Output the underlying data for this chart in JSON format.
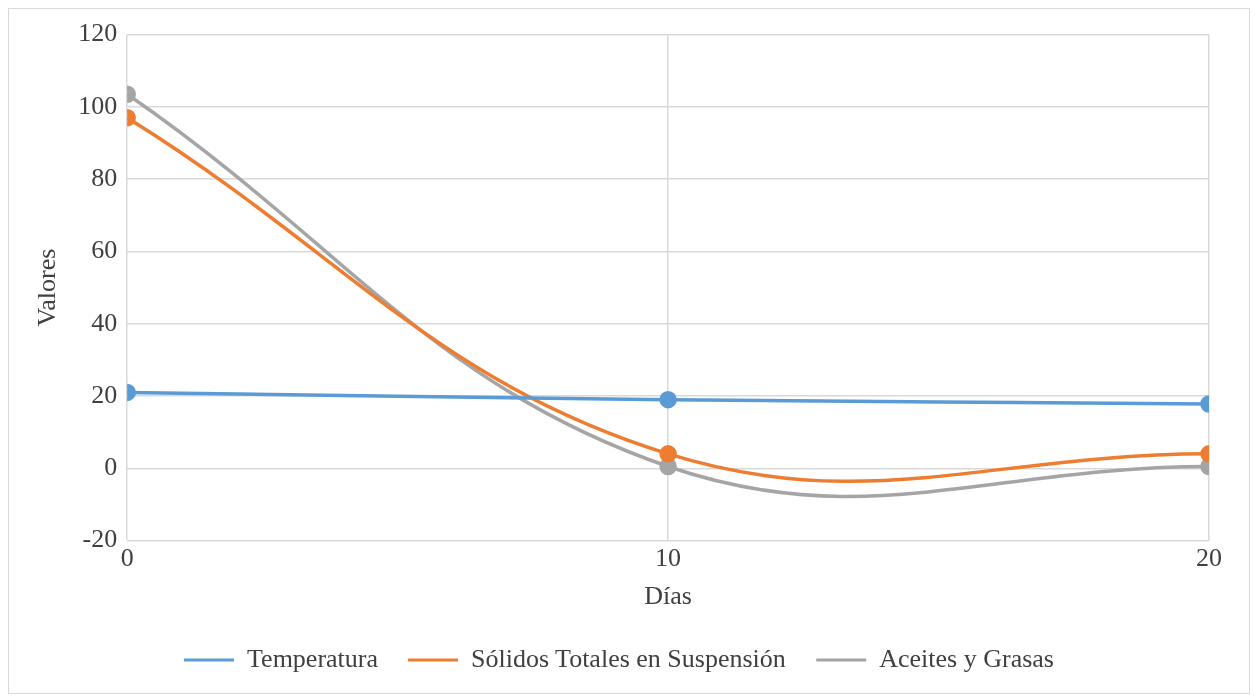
{
  "chart_data": {
    "type": "line",
    "xlabel": "Días",
    "ylabel": "Valores",
    "x": [
      0,
      10,
      20
    ],
    "xlim": [
      0,
      20
    ],
    "xticks": [
      0,
      10,
      20
    ],
    "ylim": [
      -20,
      120
    ],
    "yticks": [
      -20,
      0,
      20,
      40,
      60,
      80,
      100,
      120
    ],
    "grid": true,
    "legend": "bottom",
    "marker": "circle",
    "line_style": "solid",
    "series": [
      {
        "name": "Temperatura",
        "color": "#5b9bd5",
        "values": [
          21,
          19,
          17.8
        ]
      },
      {
        "name": "Sólidos Totales en Suspensión",
        "color": "#ed7d31",
        "values": [
          97,
          4,
          4
        ]
      },
      {
        "name": "Aceites y Grasas",
        "color": "#a5a5a5",
        "values": [
          103.5,
          0.5,
          0.5
        ]
      }
    ]
  }
}
